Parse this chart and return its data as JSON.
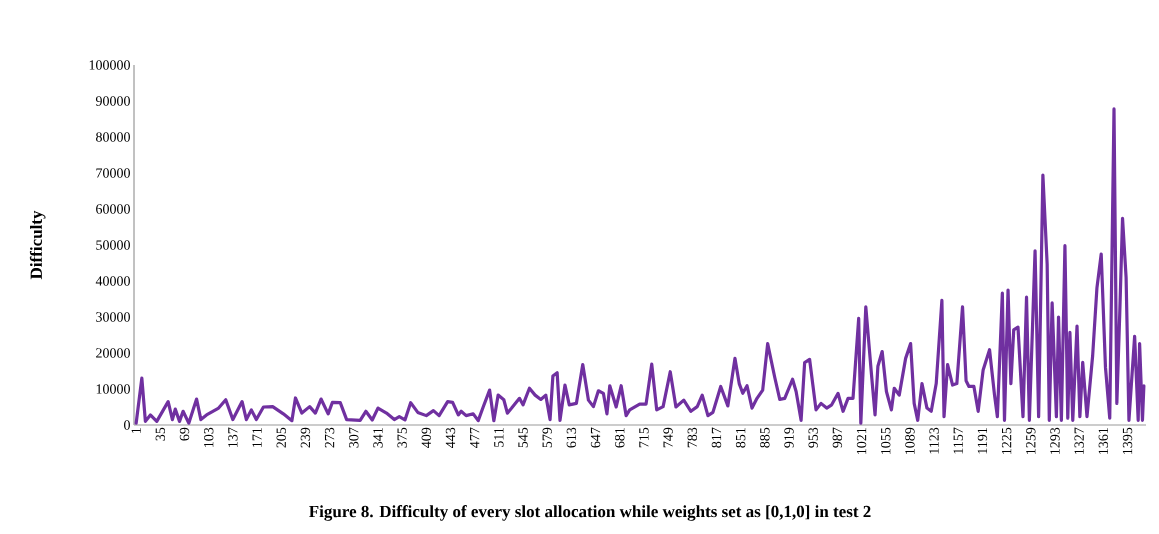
{
  "chart_data": {
    "type": "line",
    "title": "Figure 8. Difficulty of every slot allocation while weights set as [0,1,0] in test 2",
    "ylabel": "Difficulty",
    "xlim": [
      -2,
      1421
    ],
    "ylim": [
      0,
      100000
    ],
    "xticks": [
      1,
      35,
      69,
      103,
      137,
      171,
      205,
      239,
      273,
      307,
      341,
      375,
      409,
      443,
      477,
      511,
      545,
      579,
      613,
      647,
      681,
      715,
      749,
      783,
      817,
      851,
      885,
      919,
      953,
      987,
      1021,
      1055,
      1089,
      1123,
      1157,
      1191,
      1225,
      1259,
      1293,
      1327,
      1361,
      1395
    ],
    "yticks": [
      0,
      10000,
      20000,
      30000,
      40000,
      50000,
      60000,
      70000,
      80000,
      90000,
      100000
    ],
    "grid": false,
    "series": [
      {
        "color": "#7030a0",
        "x": [
          1,
          9,
          14,
          21,
          30,
          46,
          52,
          56,
          62,
          67,
          75,
          86,
          92,
          100,
          117,
          127,
          137,
          150,
          156,
          163,
          170,
          180,
          193,
          208,
          220,
          225,
          234,
          245,
          253,
          261,
          271,
          277,
          288,
          297,
          316,
          324,
          333,
          341,
          353,
          364,
          371,
          379,
          387,
          397,
          409,
          419,
          427,
          439,
          446,
          454,
          458,
          465,
          475,
          482,
          489,
          498,
          504,
          510,
          518,
          523,
          529,
          540,
          545,
          554,
          562,
          570,
          577,
          583,
          587,
          593,
          597,
          604,
          610,
          620,
          629,
          637,
          644,
          651,
          658,
          663,
          667,
          676,
          683,
          690,
          695,
          709,
          718,
          726,
          733,
          742,
          752,
          760,
          771,
          781,
          790,
          797,
          805,
          812,
          823,
          833,
          843,
          849,
          854,
          860,
          867,
          874,
          882,
          889,
          899,
          906,
          913,
          924,
          929,
          936,
          941,
          948,
          957,
          964,
          972,
          979,
          988,
          995,
          1002,
          1009,
          1017,
          1020,
          1027,
          1035,
          1040,
          1044,
          1050,
          1056,
          1063,
          1067,
          1074,
          1083,
          1090,
          1095,
          1100,
          1106,
          1113,
          1119,
          1126,
          1134,
          1137,
          1142,
          1149,
          1155,
          1163,
          1168,
          1172,
          1179,
          1185,
          1192,
          1201,
          1208,
          1212,
          1219,
          1222,
          1227,
          1231,
          1235,
          1241,
          1248,
          1253,
          1257,
          1265,
          1270,
          1276,
          1282,
          1285,
          1289,
          1295,
          1298,
          1302,
          1307,
          1311,
          1314,
          1318,
          1324,
          1328,
          1332,
          1338,
          1346,
          1352,
          1358,
          1364,
          1370,
          1376,
          1380,
          1384,
          1388,
          1393,
          1397,
          1405,
          1410,
          1412,
          1416,
          1418
        ],
        "values": [
          500,
          13000,
          1000,
          2800,
          1000,
          6500,
          1500,
          4400,
          1000,
          3800,
          500,
          7200,
          1500,
          2800,
          4700,
          7000,
          1500,
          6500,
          1500,
          4200,
          1500,
          5000,
          5100,
          3100,
          1200,
          7500,
          3300,
          5100,
          3300,
          7200,
          3100,
          6300,
          6200,
          1500,
          1300,
          3800,
          1400,
          4700,
          3300,
          1500,
          2300,
          1400,
          6200,
          3500,
          2600,
          4000,
          2600,
          6500,
          6300,
          2800,
          3800,
          2600,
          3100,
          1200,
          5000,
          9700,
          1200,
          8300,
          7000,
          3300,
          4700,
          7400,
          5600,
          10200,
          8300,
          7100,
          8300,
          1500,
          13600,
          14500,
          1300,
          11100,
          5600,
          6000,
          16800,
          6900,
          5100,
          9500,
          8800,
          3100,
          10900,
          5000,
          10900,
          2600,
          4200,
          5800,
          5800,
          16900,
          4200,
          5100,
          14800,
          5000,
          6900,
          3800,
          5100,
          8300,
          2600,
          3500,
          10700,
          5300,
          18500,
          11500,
          8800,
          10900,
          4700,
          7400,
          9700,
          22600,
          13200,
          7100,
          7400,
          12700,
          9300,
          1300,
          17300,
          18200,
          4200,
          6000,
          4700,
          5600,
          8800,
          3800,
          7400,
          7400,
          29600,
          500,
          32800,
          14000,
          2800,
          16300,
          20400,
          9300,
          4200,
          10200,
          8300,
          18500,
          22600,
          6000,
          1300,
          11500,
          4700,
          3800,
          11500,
          34600,
          2300,
          16800,
          11100,
          11500,
          32800,
          12300,
          10700,
          10700,
          3800,
          15300,
          20900,
          8300,
          2300,
          36600,
          1300,
          37500,
          11500,
          26400,
          27200,
          2300,
          35500,
          1300,
          48400,
          2300,
          69400,
          44700,
          1300,
          33900,
          2300,
          30000,
          1300,
          49800,
          1900,
          25700,
          1300,
          27500,
          2300,
          17400,
          2300,
          19300,
          38100,
          47500,
          16000,
          1900,
          87800,
          6000,
          30500,
          57400,
          41000,
          1300,
          24600,
          1300,
          22600,
          1300,
          10900
        ]
      }
    ]
  }
}
